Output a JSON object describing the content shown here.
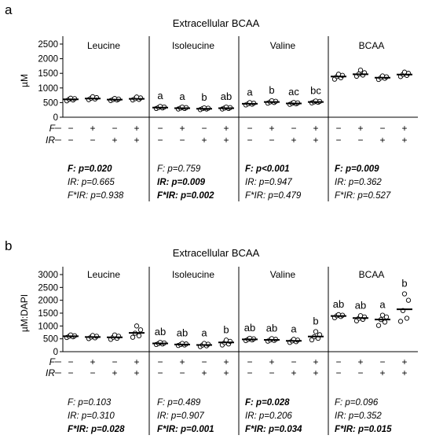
{
  "chart_data": [
    {
      "panel_letter": "a",
      "type": "scatter",
      "title": "Extracellular BCAA",
      "ylabel": "µM",
      "ylim": [
        0,
        2500
      ],
      "yticks": [
        0,
        500,
        1000,
        1500,
        2000,
        2500
      ],
      "factors": [
        {
          "name": "F",
          "levels": [
            "−",
            "+",
            "−",
            "+"
          ]
        },
        {
          "name": "IR",
          "levels": [
            "−",
            "−",
            "+",
            "+"
          ]
        }
      ],
      "groups": [
        {
          "name": "Leucine",
          "means": [
            610,
            640,
            600,
            630
          ],
          "points": [
            [
              560,
              590,
              615,
              635,
              650
            ],
            [
              600,
              625,
              650,
              670,
              700
            ],
            [
              570,
              590,
              605,
              620,
              640
            ],
            [
              590,
              610,
              635,
              660,
              690
            ]
          ],
          "letters": [
            "",
            "",
            "",
            ""
          ],
          "stats": [
            {
              "text": "F: p=0.020",
              "bold": true
            },
            {
              "text": "IR: p=0.665",
              "bold": false
            },
            {
              "text": "F*IR: p=0.938",
              "bold": false
            }
          ]
        },
        {
          "name": "Isoleucine",
          "means": [
            330,
            310,
            290,
            310
          ],
          "points": [
            [
              300,
              320,
              335,
              350,
              370
            ],
            [
              280,
              300,
              315,
              330,
              345
            ],
            [
              260,
              280,
              295,
              310,
              320
            ],
            [
              280,
              300,
              315,
              330,
              345
            ]
          ],
          "letters": [
            "a",
            "a",
            "b",
            "ab"
          ],
          "stats": [
            {
              "text": "F: p=0.759",
              "bold": false
            },
            {
              "text": "IR: p=0.009",
              "bold": true
            },
            {
              "text": "F*IR: p=0.002",
              "bold": true
            }
          ]
        },
        {
          "name": "Valine",
          "means": [
            460,
            520,
            470,
            520
          ],
          "points": [
            [
              420,
              445,
              460,
              480,
              500
            ],
            [
              480,
              505,
              525,
              545,
              565
            ],
            [
              440,
              460,
              475,
              490,
              505
            ],
            [
              490,
              510,
              525,
              540,
              555
            ]
          ],
          "letters": [
            "a",
            "b",
            "ac",
            "bc"
          ],
          "stats": [
            {
              "text": "F: p<0.001",
              "bold": true
            },
            {
              "text": "IR: p=0.947",
              "bold": false
            },
            {
              "text": "F*IR: p=0.479",
              "bold": false
            }
          ]
        },
        {
          "name": "BCAA",
          "means": [
            1390,
            1470,
            1350,
            1460
          ],
          "points": [
            [
              1300,
              1350,
              1390,
              1430,
              1470
            ],
            [
              1400,
              1440,
              1480,
              1520,
              1610
            ],
            [
              1290,
              1330,
              1350,
              1380,
              1410
            ],
            [
              1390,
              1430,
              1460,
              1500,
              1540
            ]
          ],
          "letters": [
            "",
            "",
            "",
            ""
          ],
          "stats": [
            {
              "text": "F: p=0.009",
              "bold": true
            },
            {
              "text": "IR: p=0.362",
              "bold": false
            },
            {
              "text": "F*IR: p=0.527",
              "bold": false
            }
          ]
        }
      ]
    },
    {
      "panel_letter": "b",
      "type": "scatter",
      "title": "Extracellular BCAA",
      "ylabel": "µM:DAPI",
      "ylim": [
        0,
        3000
      ],
      "yticks": [
        0,
        500,
        1000,
        1500,
        2000,
        2500,
        3000
      ],
      "factors": [
        {
          "name": "F",
          "levels": [
            "−",
            "+",
            "−",
            "+"
          ]
        },
        {
          "name": "IR",
          "levels": [
            "−",
            "−",
            "+",
            "+"
          ]
        }
      ],
      "groups": [
        {
          "name": "Leucine",
          "means": [
            600,
            570,
            560,
            730
          ],
          "points": [
            [
              550,
              580,
              600,
              620,
              650
            ],
            [
              510,
              540,
              570,
              600,
              630
            ],
            [
              480,
              520,
              560,
              600,
              650
            ],
            [
              560,
              620,
              720,
              850,
              1000
            ]
          ],
          "letters": [
            "",
            "",
            "",
            ""
          ],
          "stats": [
            {
              "text": "F: p=0.103",
              "bold": false
            },
            {
              "text": "IR: p=0.310",
              "bold": false
            },
            {
              "text": "F*IR: p=0.028",
              "bold": true
            }
          ]
        },
        {
          "name": "Isoleucine",
          "means": [
            320,
            280,
            260,
            360
          ],
          "points": [
            [
              280,
              300,
              320,
              340,
              360
            ],
            [
              240,
              260,
              280,
              300,
              320
            ],
            [
              200,
              230,
              260,
              290,
              320
            ],
            [
              260,
              300,
              350,
              400,
              450
            ]
          ],
          "letters": [
            "ab",
            "ab",
            "a",
            "b"
          ],
          "stats": [
            {
              "text": "F: p=0.489",
              "bold": false
            },
            {
              "text": "IR: p=0.907",
              "bold": false
            },
            {
              "text": "F*IR: p=0.001",
              "bold": true
            }
          ]
        },
        {
          "name": "Valine",
          "means": [
            480,
            460,
            420,
            590
          ],
          "points": [
            [
              430,
              460,
              480,
              500,
              520
            ],
            [
              410,
              440,
              460,
              480,
              510
            ],
            [
              360,
              390,
              420,
              450,
              480
            ],
            [
              460,
              520,
              580,
              660,
              780
            ]
          ],
          "letters": [
            "ab",
            "ab",
            "a",
            "b"
          ],
          "stats": [
            {
              "text": "F: p=0.028",
              "bold": true
            },
            {
              "text": "IR: p=0.206",
              "bold": false
            },
            {
              "text": "F*IR: p=0.034",
              "bold": true
            }
          ]
        },
        {
          "name": "BCAA",
          "means": [
            1390,
            1310,
            1250,
            1650
          ],
          "points": [
            [
              1320,
              1370,
              1400,
              1420,
              1440
            ],
            [
              1200,
              1260,
              1300,
              1350,
              1400
            ],
            [
              1020,
              1150,
              1250,
              1350,
              1420
            ],
            [
              1180,
              1300,
              1600,
              2000,
              2250
            ]
          ],
          "letters": [
            "ab",
            "ab",
            "a",
            "b"
          ],
          "stats": [
            {
              "text": "F: p=0.096",
              "bold": false
            },
            {
              "text": "IR: p=0.352",
              "bold": false
            },
            {
              "text": "F*IR: p=0.015",
              "bold": true
            }
          ]
        }
      ]
    }
  ],
  "style": {
    "point_stroke": "#000000",
    "point_fill": "#ffffff",
    "axis_color": "#000000",
    "text_color": "#000000"
  }
}
